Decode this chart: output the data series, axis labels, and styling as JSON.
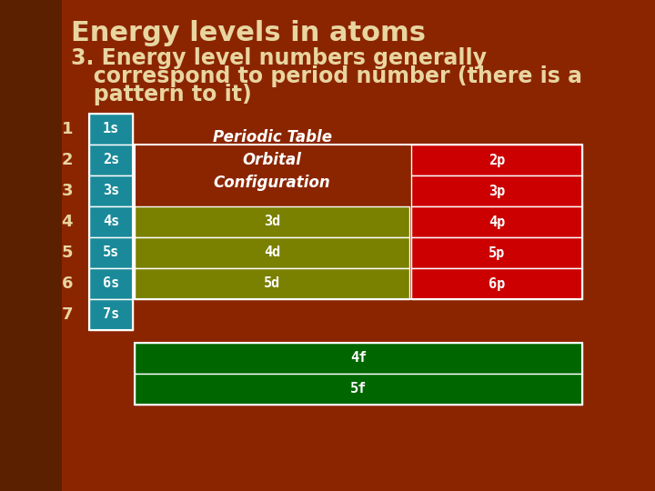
{
  "title": "Energy levels in atoms",
  "subtitle_line1": "3. Energy level numbers generally",
  "subtitle_line2": "   correspond to period number (there is a",
  "subtitle_line3": "   pattern to it)",
  "bg_color": "#8B2500",
  "bg_left_color": "#7A3000",
  "title_color": "#E8D5A0",
  "subtitle_color": "#E8D5A0",
  "title_fontsize": 22,
  "subtitle_fontsize": 17,
  "period_numbers": [
    "1",
    "2",
    "3",
    "4",
    "5",
    "6",
    "7"
  ],
  "s_orbitals": [
    "1s",
    "2s",
    "3s",
    "4s",
    "5s",
    "6s",
    "7s"
  ],
  "s_color": "#1A8A9A",
  "d_orbitals": [
    {
      "label": "3d",
      "row": 4
    },
    {
      "label": "4d",
      "row": 5
    },
    {
      "label": "5d",
      "row": 6
    }
  ],
  "d_color": "#7A8000",
  "p_orbitals": [
    {
      "label": "2p",
      "row": 2
    },
    {
      "label": "3p",
      "row": 3
    },
    {
      "label": "4p",
      "row": 4
    },
    {
      "label": "5p",
      "row": 5
    },
    {
      "label": "6p",
      "row": 6
    }
  ],
  "p_color": "#CC0000",
  "f_orbitals": [
    "4f",
    "5f"
  ],
  "f_color": "#006600",
  "periodic_label": "Periodic Table\nOrbital\nConfiguration",
  "white": "#FFFFFF",
  "orbital_fontsize": 11,
  "period_fontsize": 13,
  "label_fontsize": 12
}
